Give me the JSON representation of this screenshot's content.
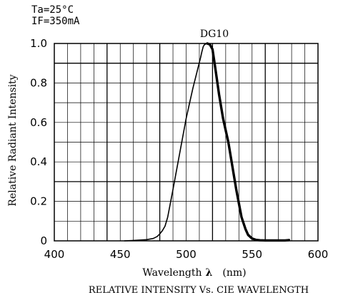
{
  "conditions": {
    "line1": "Ta=25°C",
    "line2": "IF=350mA"
  },
  "chart_data": {
    "type": "line",
    "title": "DG10",
    "caption": "RELATIVE INTENSITY Vs. CIE WAVELENGTH",
    "xlabel_text": "Wavelength",
    "xlabel_symbol": "λ",
    "xlabel_unit": "(nm)",
    "ylabel": "Relative Radiant Intensity",
    "xlim": [
      400,
      600
    ],
    "ylim": [
      0,
      1.0
    ],
    "x_ticks": [
      "400",
      "450",
      "500",
      "550",
      "600"
    ],
    "y_ticks": [
      "0",
      "0.2",
      "0.4",
      "0.6",
      "0.8",
      "1.0"
    ],
    "grid": true,
    "series": [
      {
        "x": [
          453,
          460,
          470,
          475,
          478,
          480,
          482,
          484,
          486,
          490,
          495,
          500,
          505,
          508,
          511,
          512,
          513,
          514,
          516,
          518,
          520,
          522,
          525,
          528,
          532,
          535,
          538,
          540,
          542,
          545,
          547,
          550,
          553,
          556,
          560,
          565,
          570,
          575,
          578
        ],
        "y": [
          0.0,
          0.002,
          0.006,
          0.012,
          0.022,
          0.035,
          0.052,
          0.075,
          0.12,
          0.26,
          0.44,
          0.62,
          0.77,
          0.85,
          0.93,
          0.96,
          0.985,
          0.995,
          1.0,
          0.995,
          0.97,
          0.88,
          0.74,
          0.62,
          0.5,
          0.38,
          0.26,
          0.19,
          0.12,
          0.06,
          0.03,
          0.012,
          0.005,
          0.003,
          0.002,
          0.002,
          0.002,
          0.002,
          0.004
        ]
      }
    ]
  }
}
